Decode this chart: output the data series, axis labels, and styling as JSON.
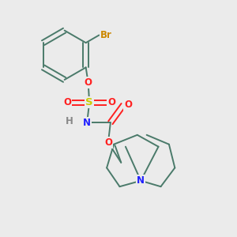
{
  "background_color": "#ebebeb",
  "bond_color": "#4a7a6a",
  "atom_colors": {
    "Br": "#cc8800",
    "O": "#ff2020",
    "S": "#cccc00",
    "N": "#2020ff",
    "H": "#888888",
    "C": "#4a7a6a"
  },
  "figsize": [
    3.0,
    3.0
  ],
  "dpi": 100
}
